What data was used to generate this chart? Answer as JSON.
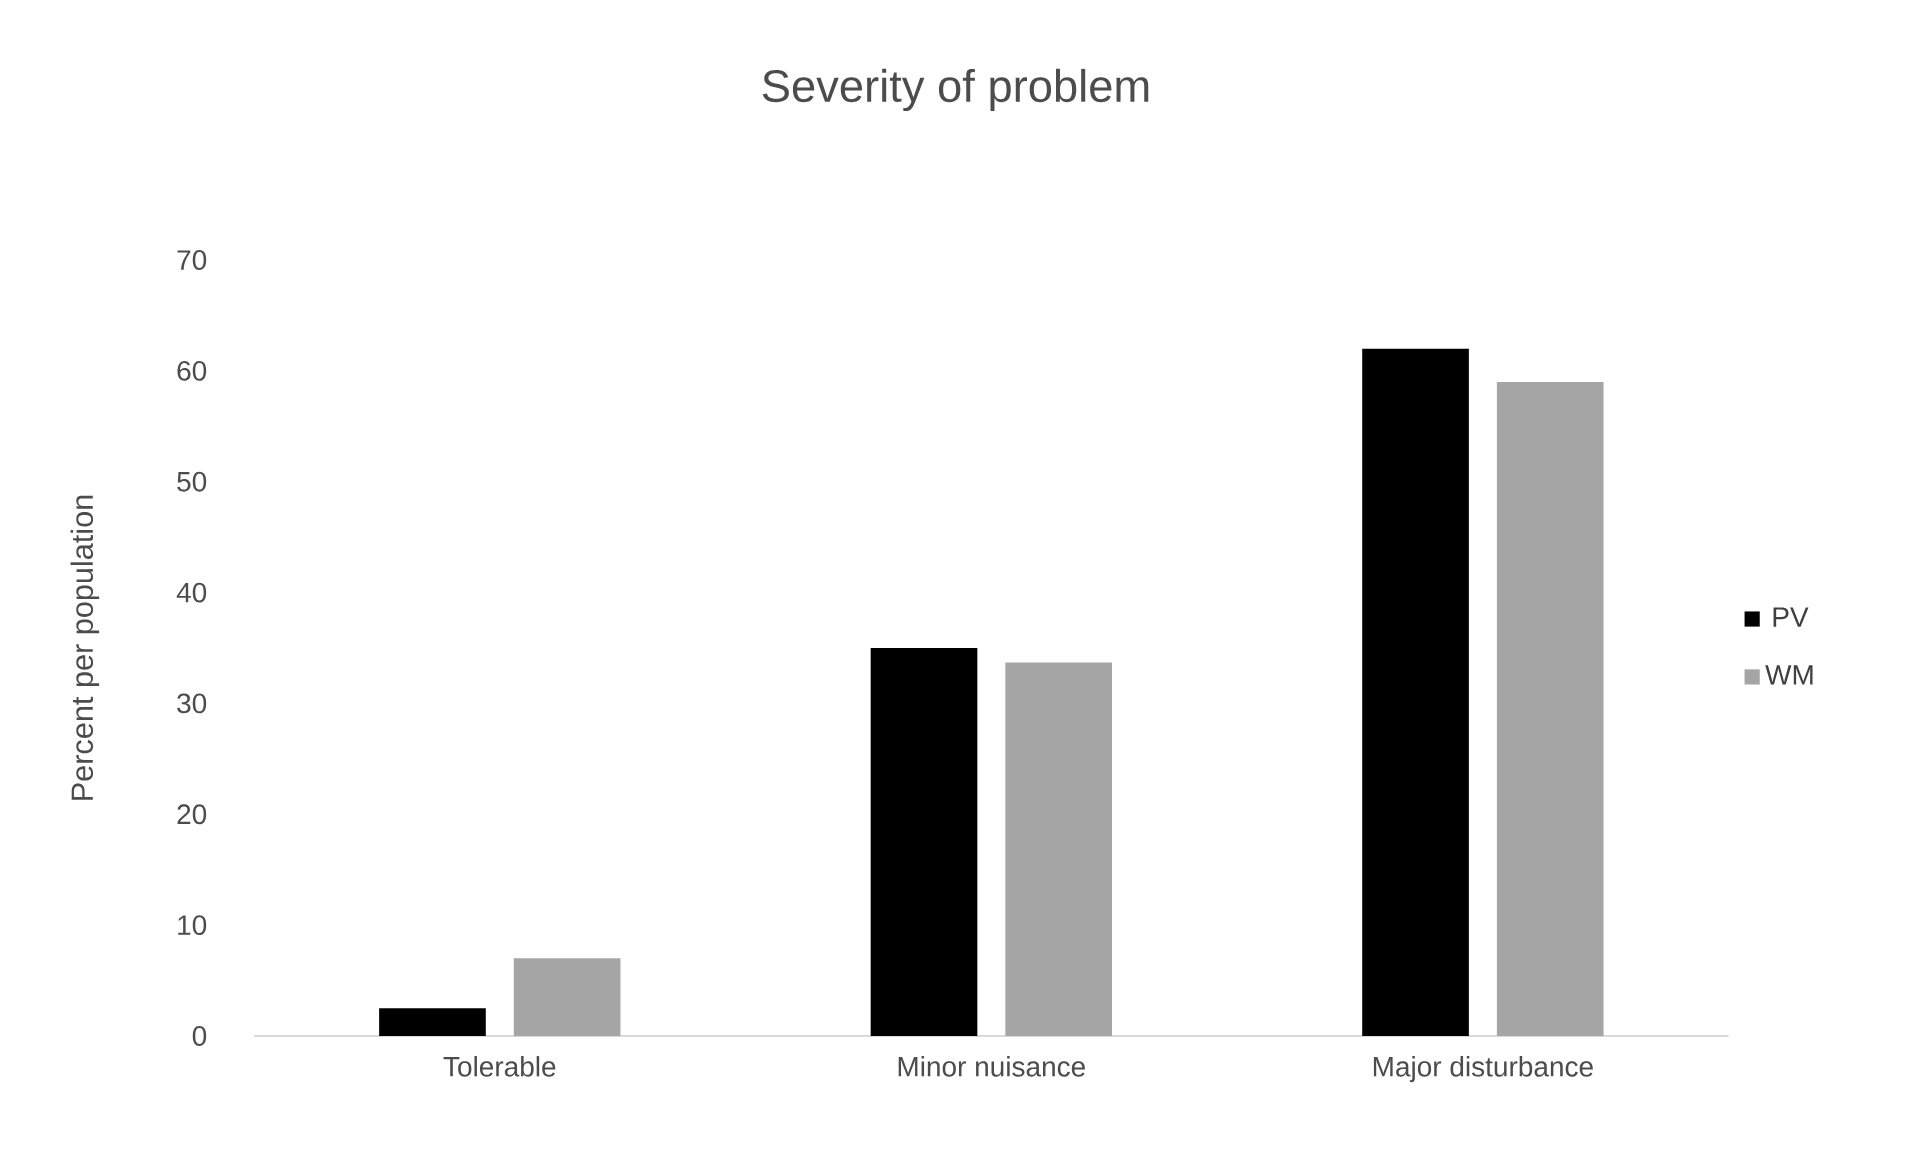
{
  "chart_data": {
    "type": "bar",
    "title": "Severity of problem",
    "ylabel": "Percent per population",
    "categories": [
      "Tolerable",
      "Minor nuisance",
      "Major disturbance"
    ],
    "series": [
      {
        "name": "PV",
        "color": "#000000",
        "values": [
          2.5,
          35,
          62
        ]
      },
      {
        "name": "WM",
        "color": "#a5a5a5",
        "values": [
          7,
          33.7,
          59
        ]
      }
    ],
    "ylim": [
      0,
      70
    ],
    "yticks": [
      0,
      10,
      20,
      30,
      40,
      50,
      60,
      70
    ],
    "legend": "right"
  }
}
